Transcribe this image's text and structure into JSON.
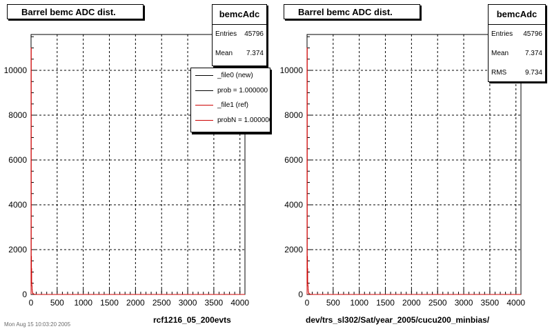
{
  "colors": {
    "hist_new": "#000000",
    "hist_ref": "#cc0000",
    "grid": "#000000"
  },
  "legend": {
    "items": [
      {
        "label": "_file0 (new)",
        "color": "#000000"
      },
      {
        "label": "prob = 1.000000",
        "color": "#000000"
      },
      {
        "label": "_file1 (ref)",
        "color": "#cc0000"
      },
      {
        "label": "probN = 1.000000",
        "color": "#cc0000"
      }
    ]
  },
  "footer_text": "Mon Aug 15 10:03:20 2005",
  "chart_data": [
    {
      "type": "bar",
      "title": "Barrel bemc ADC dist.",
      "caption": "rcf1216_05_200evts",
      "stats": {
        "name": "bemcAdc",
        "rows": [
          {
            "label": "Entries",
            "value": "45796"
          },
          {
            "label": "Mean",
            "value": "7.374"
          }
        ]
      },
      "xlim": [
        0,
        4096
      ],
      "ylim": [
        0,
        11600
      ],
      "xticks": [
        0,
        500,
        1000,
        1500,
        2000,
        2500,
        3000,
        3500,
        4000
      ],
      "yticks": [
        0,
        2000,
        4000,
        6000,
        8000,
        10000
      ],
      "grid": true,
      "series": [
        {
          "name": "_file1 (ref)",
          "color": "#cc0000",
          "x": [
            0,
            4,
            8,
            12,
            16,
            20,
            24,
            28,
            32,
            40,
            48,
            64,
            96
          ],
          "values": [
            11000,
            1700,
            1150,
            520,
            380,
            210,
            130,
            80,
            45,
            25,
            12,
            5,
            0
          ]
        }
      ]
    },
    {
      "type": "bar",
      "title": "Barrel bemc ADC dist.",
      "caption": "dev/trs_sl302/Sat/year_2005/cucu200_minbias/",
      "stats": {
        "name": "bemcAdc",
        "rows": [
          {
            "label": "Entries",
            "value": "45796"
          },
          {
            "label": "Mean",
            "value": "7.374"
          },
          {
            "label": "RMS",
            "value": "9.734"
          }
        ]
      },
      "xlim": [
        0,
        4096
      ],
      "ylim": [
        0,
        11600
      ],
      "xticks": [
        0,
        500,
        1000,
        1500,
        2000,
        2500,
        3000,
        3500,
        4000
      ],
      "yticks": [
        0,
        2000,
        4000,
        6000,
        8000,
        10000
      ],
      "grid": true,
      "series": [
        {
          "name": "bemcAdc",
          "color": "#cc0000",
          "x": [
            0,
            4,
            8,
            12,
            16,
            20,
            24,
            28,
            32,
            40,
            48,
            64,
            96
          ],
          "values": [
            11000,
            1700,
            1150,
            520,
            380,
            210,
            130,
            80,
            45,
            25,
            12,
            5,
            0
          ]
        }
      ]
    }
  ]
}
